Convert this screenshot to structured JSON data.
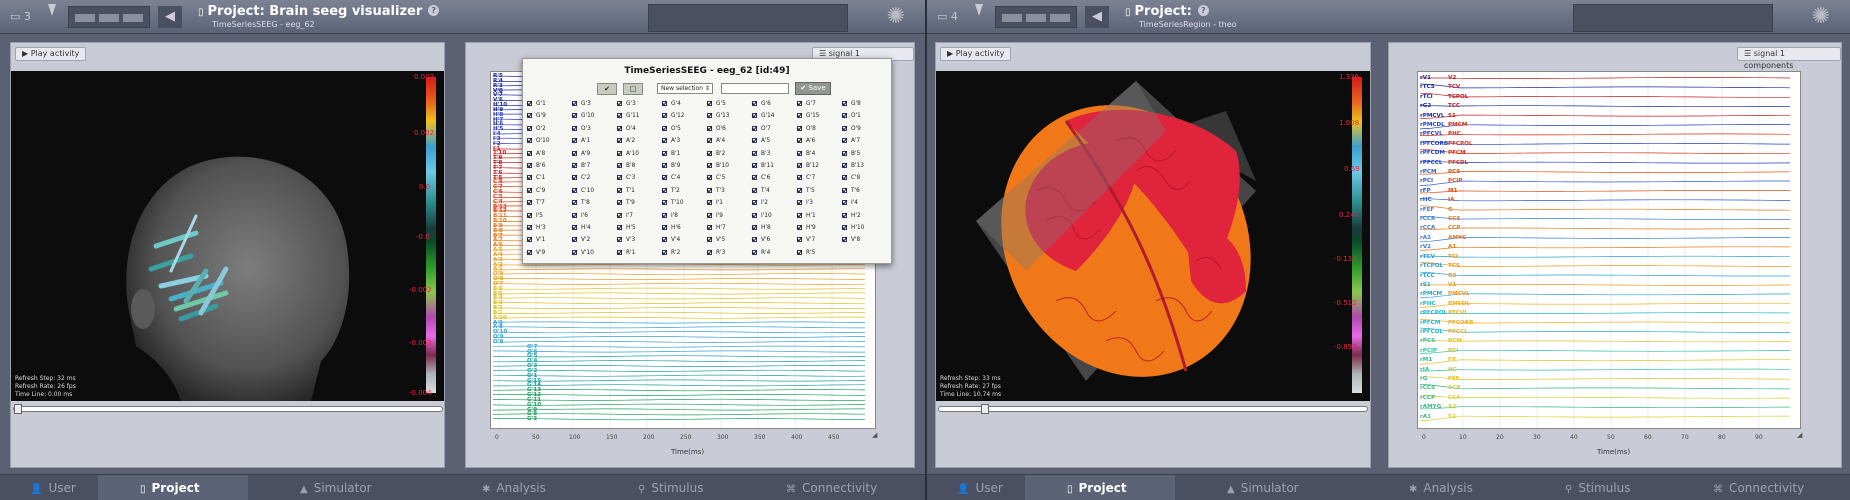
{
  "left": {
    "header": {
      "number": "3",
      "title": "Project: Brain seeg visualizer",
      "subtitle": "TimeSeriesSEEG - eeg_62",
      "help": "?"
    },
    "viewer": {
      "play_label": "Play activity",
      "colorbar_ticks": [
        "0.003",
        "0.002",
        "0.0",
        "-0.0",
        "-0.002",
        "-0.003",
        "-0.004"
      ],
      "refresh_step": "Refresh Step: 32 ms",
      "refresh_rate": "Refresh Rate: 26 fps",
      "time_line": "Time Line: 0.00 ms",
      "timeline_position": 0.0
    },
    "plot": {
      "signal_button": "signal 1 components",
      "channel_labels_top": [
        "R'5",
        "R'4",
        "R'3",
        "V'8",
        "V'7",
        "V'6",
        "H'10",
        "H'9",
        "H'8",
        "H'7",
        "H'6",
        "H'5",
        "I'4",
        "I'3",
        "I'2",
        "I'1",
        "T'10",
        "T'9",
        "T'8",
        "T'7",
        "T'6",
        "T'5",
        "C'8",
        "C'7",
        "C'6",
        "C'5",
        "C'4",
        "B'13",
        "B'12",
        "B'11",
        "B'10",
        "B'9",
        "B'8",
        "B'7",
        "A'7",
        "A'6",
        "A'5",
        "A'4",
        "A'3",
        "A'2",
        "A'1",
        "O'9",
        "O'8",
        "O'7"
      ],
      "channel_labels_bottom": [
        "B'6",
        "B'5",
        "B'4",
        "B'3",
        "B'2",
        "B'1",
        "A'10",
        "A'9",
        "A'8",
        "O'10",
        "O'9",
        "O'8",
        "O'7",
        "O'6",
        "O'5",
        "O'4",
        "O'3",
        "O'2",
        "O'1",
        "G'15",
        "G'14",
        "G'13",
        "G'12",
        "G'11",
        "G'10",
        "G'9",
        "G'8",
        "G'3"
      ],
      "x_ticks": [
        "0",
        "50",
        "100",
        "150",
        "200",
        "250",
        "300",
        "350",
        "400",
        "450"
      ],
      "x_label": "Time(ms)"
    },
    "popup": {
      "title": "TimeSeriesSEEG - eeg_62 [id:49]",
      "select_label": "New selection",
      "save_label": "Save",
      "channels": [
        "G'1",
        "G'3",
        "G'3",
        "G'4",
        "G'5",
        "G'6",
        "G'7",
        "G'8",
        "G'9",
        "G'10",
        "G'11",
        "G'12",
        "G'13",
        "G'14",
        "G'15",
        "O'1",
        "O'2",
        "O'3",
        "O'4",
        "O'5",
        "O'6",
        "O'7",
        "O'8",
        "O'9",
        "O'10",
        "A'1",
        "A'2",
        "A'3",
        "A'4",
        "A'5",
        "A'6",
        "A'7",
        "A'8",
        "A'9",
        "A'10",
        "B'1",
        "B'2",
        "B'3",
        "B'4",
        "B'5",
        "B'6",
        "B'7",
        "B'8",
        "B'9",
        "B'10",
        "B'11",
        "B'12",
        "B'13",
        "C'1",
        "C'2",
        "C'3",
        "C'4",
        "C'5",
        "C'6",
        "C'7",
        "C'8",
        "C'9",
        "C'10",
        "T'1",
        "T'2",
        "T'3",
        "T'4",
        "T'5",
        "T'6",
        "T'7",
        "T'8",
        "T'9",
        "T'10",
        "I'1",
        "I'2",
        "I'3",
        "I'4",
        "I'5",
        "I'6",
        "I'7",
        "I'8",
        "I'9",
        "I'10",
        "H'1",
        "H'2",
        "H'3",
        "H'4",
        "H'5",
        "H'6",
        "H'7",
        "H'8",
        "H'9",
        "H'10",
        "V'1",
        "V'2",
        "V'3",
        "V'4",
        "V'5",
        "V'6",
        "V'7",
        "V'8",
        "V'9",
        "V'10",
        "R'1",
        "R'2",
        "R'3",
        "R'4",
        "R'5"
      ]
    },
    "nav": [
      "User",
      "Project",
      "Simulator",
      "Analysis",
      "Stimulus",
      "Connectivity"
    ]
  },
  "right": {
    "header": {
      "number": "4",
      "title": "Project:",
      "subtitle": "TimeSeriesRegion - theo",
      "help": "?"
    },
    "viewer": {
      "play_label": "Play activity",
      "colorbar_ticks": [
        "1.336",
        "1.008",
        "0.69",
        "0.247",
        "-0.133",
        "-0.512",
        "-0.892"
      ],
      "refresh_step": "Refresh Step: 33 ms",
      "refresh_rate": "Refresh Rate: 27 fps",
      "time_line": "Time Line: 10.74 ms",
      "timeline_position": 0.11
    },
    "plot": {
      "signal_button": "signal 1 components",
      "region_labels_left": [
        "rV1",
        "rTCS",
        "rTCI",
        "rG2",
        "rPMCVL",
        "rPMCDL",
        "rPFCVL",
        "rPFCORB",
        "rPFCDM",
        "rPFCCL",
        "rPCM",
        "rPCI",
        "rFP",
        "rHC",
        "rFEF",
        "rCCR",
        "rCCA",
        "rA2",
        "rV2",
        "rTCV",
        "rTCPOL",
        "rTCC",
        "rS1",
        "rPMCM",
        "rPHC",
        "rPFCPOL",
        "rPFCM",
        "rPFCDL",
        "rPCS",
        "rPCIP",
        "rM1",
        "rIA",
        "rG",
        "rCCS",
        "rCCP",
        "rAMYG",
        "rA1"
      ],
      "region_labels_right": [
        "V2",
        "TCV",
        "TCPOL",
        "TCC",
        "S1",
        "PMCM",
        "PHC",
        "PFCPOL",
        "PFCM",
        "PFCDL",
        "PCS",
        "PCIP",
        "M1",
        "IA",
        "G",
        "CCS",
        "CCP",
        "AMYG",
        "A1",
        "TCI",
        "TCS",
        "G2",
        "V1",
        "PMCVL",
        "PMCDL",
        "PFCVL",
        "PFCORB",
        "PFCCL",
        "PCM",
        "PCI",
        "FP",
        "HC",
        "FEF",
        "CCR",
        "CCA",
        "A2",
        "S2"
      ],
      "x_ticks": [
        "0",
        "10",
        "20",
        "30",
        "40",
        "50",
        "60",
        "70",
        "80",
        "90"
      ],
      "x_label": "Time(ms)"
    },
    "nav": [
      "User",
      "Project",
      "Simulator",
      "Analysis",
      "Stimulus",
      "Connectivity"
    ]
  },
  "colors": {
    "cortex_red": "#e0243c",
    "cortex_orange": "#f07818",
    "head_gray": "#6a6a6a",
    "header_bg": "#5d6377",
    "nav_bg": "#4a5062"
  }
}
